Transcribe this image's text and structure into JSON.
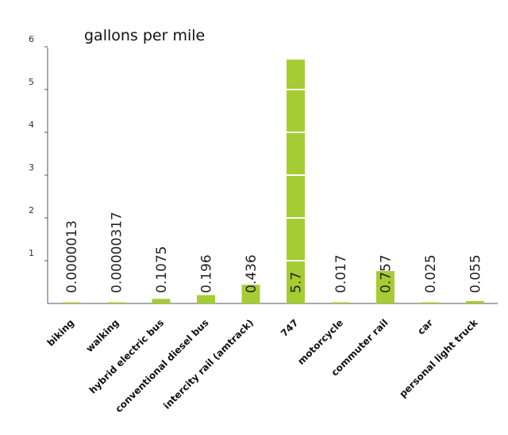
{
  "chart_data": {
    "type": "bar",
    "title": "gallons per mile",
    "categories": [
      "biking",
      "walking",
      "hybrid electric bus",
      "conventional diesel bus",
      "intercity rail (amtrack)",
      "747",
      "motorcycle",
      "commuter rail",
      "car",
      "personal light truck"
    ],
    "values": [
      1.3e-06,
      3.17e-06,
      0.1075,
      0.196,
      0.436,
      5.7,
      0.017,
      0.757,
      0.025,
      0.055
    ],
    "data_labels": [
      "0.0000013",
      "0.00000317",
      "0.1075",
      "0.196",
      "0.436",
      "5.7",
      "0.017",
      "0.757",
      "0.025",
      "0.055"
    ],
    "yticks": [
      "1",
      "2",
      "3",
      "4",
      "5",
      "6"
    ],
    "ylim": [
      0,
      6
    ],
    "xlabel": "",
    "ylabel": "",
    "grid": false,
    "bar_color": "#a6cc33",
    "bar_segment_separator_color": "#ffffff"
  }
}
